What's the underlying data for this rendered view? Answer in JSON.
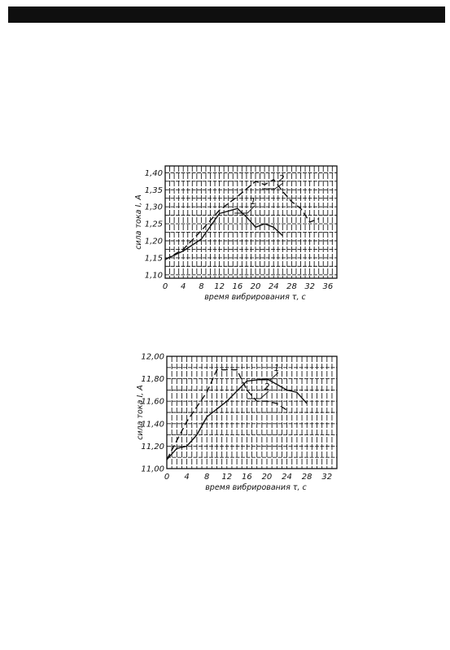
{
  "chart_data": [
    {
      "type": "line",
      "xlabel": "время вибрирования τ, с",
      "ylabel": "сила тока I, А",
      "xlim": [
        0,
        38
      ],
      "ylim": [
        1.09,
        1.42
      ],
      "x_ticks": [
        "0",
        "4",
        "8",
        "12",
        "16",
        "20",
        "24",
        "28",
        "32",
        "36"
      ],
      "y_ticks": [
        "1,40",
        "1,35",
        "1,30",
        "1,25",
        "1,20",
        "1,15",
        "1,10"
      ],
      "grid": true,
      "series": [
        {
          "name": "1",
          "style": "solid",
          "x": [
            0,
            4,
            8,
            12,
            16,
            18,
            20,
            22,
            24,
            26
          ],
          "y": [
            1.145,
            1.17,
            1.205,
            1.28,
            1.295,
            1.27,
            1.24,
            1.25,
            1.24,
            1.215
          ]
        },
        {
          "name": "2",
          "style": "dashed",
          "x": [
            0,
            4,
            8,
            12,
            16,
            20,
            22,
            24,
            26,
            28,
            30,
            32,
            34
          ],
          "y": [
            1.145,
            1.175,
            1.23,
            1.29,
            1.33,
            1.375,
            1.365,
            1.38,
            1.345,
            1.315,
            1.295,
            1.255,
            1.265
          ]
        }
      ]
    },
    {
      "type": "line",
      "xlabel": "время вибрирования τ, с",
      "ylabel": "сила тока I, А",
      "xlim": [
        0,
        34
      ],
      "ylim": [
        11.0,
        12.0
      ],
      "x_ticks": [
        "0",
        "4",
        "8",
        "12",
        "16",
        "20",
        "24",
        "28",
        "32"
      ],
      "y_ticks": [
        "12,00",
        "11,80",
        "11,60",
        "11,40",
        "11,20",
        "11,00"
      ],
      "grid": true,
      "series": [
        {
          "name": "1",
          "style": "solid",
          "x": [
            0,
            2,
            4,
            6,
            8,
            12,
            16,
            20,
            24,
            26,
            28
          ],
          "y": [
            11.08,
            11.18,
            11.2,
            11.3,
            11.46,
            11.6,
            11.78,
            11.8,
            11.7,
            11.68,
            11.58
          ]
        },
        {
          "name": "2",
          "style": "dashed",
          "x": [
            0,
            4,
            8,
            10,
            14,
            16,
            18,
            20,
            22,
            24
          ],
          "y": [
            11.08,
            11.42,
            11.68,
            11.88,
            11.88,
            11.7,
            11.6,
            11.6,
            11.58,
            11.52
          ]
        }
      ]
    }
  ]
}
